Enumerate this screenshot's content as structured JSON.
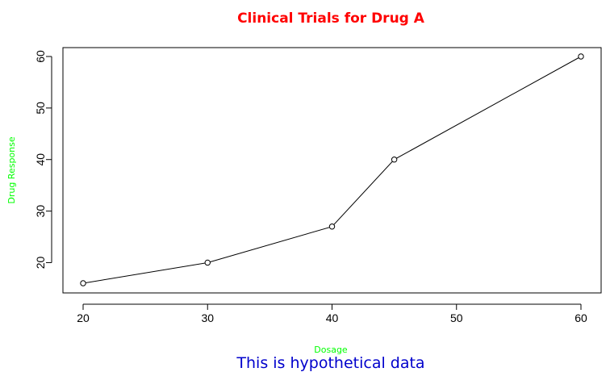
{
  "chart_data": {
    "type": "line",
    "title": "Clinical Trials for Drug A",
    "subtitle": "This is hypothetical data",
    "xlabel": "Dosage",
    "ylabel": "Drug Response",
    "x": [
      20,
      30,
      40,
      45,
      60
    ],
    "y": [
      16,
      20,
      27,
      40,
      60
    ],
    "xlim": [
      20,
      60
    ],
    "ylim": [
      16,
      60
    ],
    "xticks": [
      20,
      30,
      40,
      50,
      60
    ],
    "yticks": [
      20,
      30,
      40,
      50,
      60
    ],
    "grid": false,
    "markers": "open-circle",
    "colors": {
      "title": "#ff0000",
      "axis_labels": "#00ff00",
      "subtitle": "#0000cc",
      "line": "#000000"
    }
  }
}
